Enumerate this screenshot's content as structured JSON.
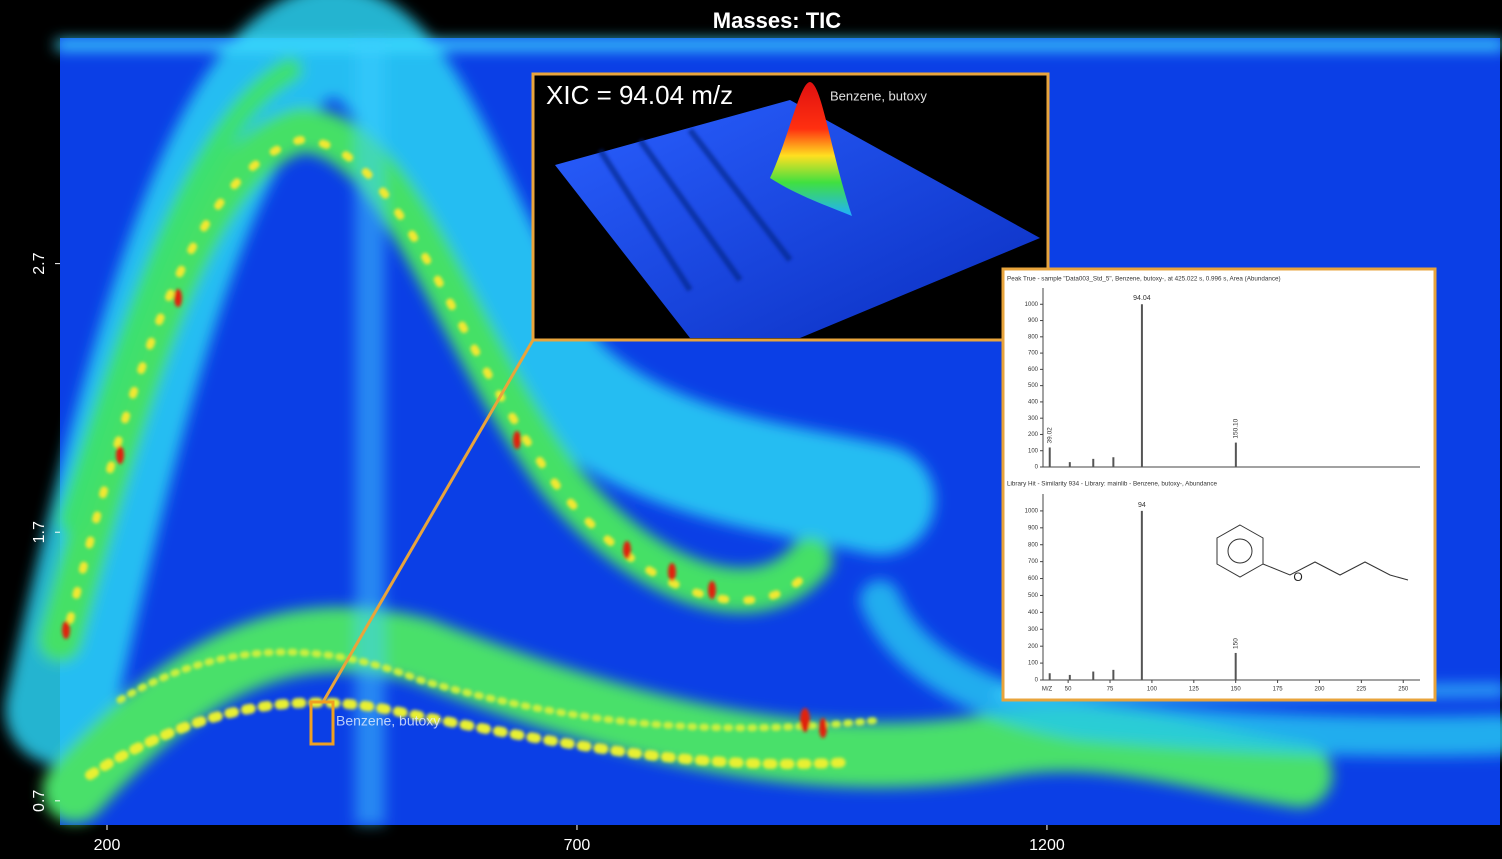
{
  "chart_data": [
    {
      "type": "heatmap",
      "title": "Masses: TIC",
      "xlim": [
        150,
        1682
      ],
      "ylim": [
        0.61,
        3.54
      ],
      "xticks": [
        200,
        700,
        1200
      ],
      "yticks": [
        0.7,
        1.7,
        2.7
      ],
      "annotation": "Benzene, butoxy",
      "inset": {
        "title": "XIC = 94.04 m/z",
        "label": "Benzene, butoxy"
      }
    },
    {
      "type": "spectrum",
      "title": "Peak True - sample \"Data003_Std_5\", Benzene, butoxy-, at 425.022 s, 0.996 s, Area (Abundance)",
      "x": [
        39.02,
        51,
        65,
        77,
        94.04,
        150.1
      ],
      "values": [
        120,
        30,
        50,
        60,
        1000,
        150
      ],
      "peak_labels": [
        "39.02",
        null,
        null,
        null,
        "94.04",
        "150.10"
      ],
      "xlim": [
        35,
        260
      ],
      "ylim": [
        0,
        1100
      ],
      "yticks": [
        0,
        100,
        200,
        300,
        400,
        500,
        600,
        700,
        800,
        900,
        1000
      ]
    },
    {
      "type": "spectrum",
      "title": "Library Hit - Similarity 934 - Library: mainlib - Benzene, butoxy-, Abundance",
      "x": [
        39,
        51,
        65,
        77,
        94,
        150
      ],
      "values": [
        40,
        30,
        50,
        60,
        1000,
        160
      ],
      "peak_labels": [
        null,
        null,
        null,
        null,
        "94",
        "150"
      ],
      "xlim": [
        35,
        260
      ],
      "ylim": [
        0,
        1100
      ],
      "yticks": [
        0,
        100,
        200,
        300,
        400,
        500,
        600,
        700,
        800,
        900,
        1000
      ],
      "xlabel": "M/Z",
      "xticks": [
        50,
        75,
        100,
        125,
        150,
        175,
        200,
        225,
        250
      ],
      "structure_label": "O"
    }
  ]
}
